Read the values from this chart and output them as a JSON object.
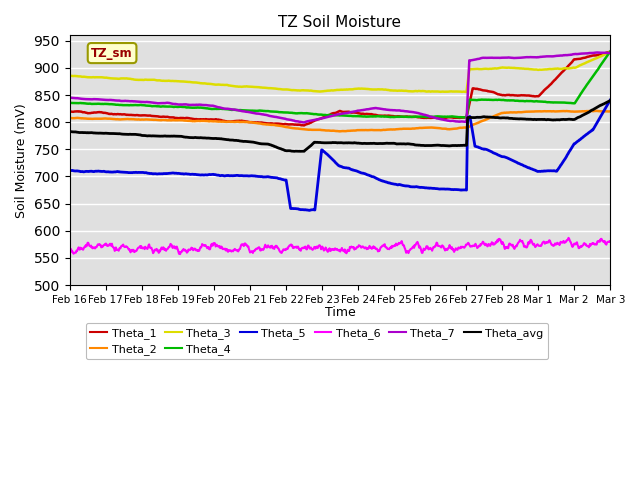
{
  "title": "TZ Soil Moisture",
  "ylabel": "Soil Moisture (mV)",
  "xlabel": "Time",
  "ylim": [
    500,
    960
  ],
  "yticks": [
    500,
    550,
    600,
    650,
    700,
    750,
    800,
    850,
    900,
    950
  ],
  "background_color": "#e0e0e0",
  "legend_label": "TZ_sm",
  "series": {
    "Theta_1": {
      "color": "#cc0000",
      "linewidth": 1.8
    },
    "Theta_2": {
      "color": "#ff8800",
      "linewidth": 1.8
    },
    "Theta_3": {
      "color": "#dddd00",
      "linewidth": 1.8
    },
    "Theta_4": {
      "color": "#00bb00",
      "linewidth": 1.8
    },
    "Theta_5": {
      "color": "#0000dd",
      "linewidth": 2.0
    },
    "Theta_6": {
      "color": "#ff00ff",
      "linewidth": 1.5
    },
    "Theta_7": {
      "color": "#aa00cc",
      "linewidth": 1.8
    },
    "Theta_avg": {
      "color": "#000000",
      "linewidth": 2.0
    }
  },
  "xtick_labels": [
    "Feb 16",
    "Feb 17",
    "Feb 18",
    "Feb 19",
    "Feb 20",
    "Feb 21",
    "Feb 22",
    "Feb 23",
    "Feb 24",
    "Feb 25",
    "Feb 26",
    "Feb 27",
    "Feb 28",
    "Mar 1",
    "Mar 2",
    "Mar 3"
  ],
  "n_points": 960
}
